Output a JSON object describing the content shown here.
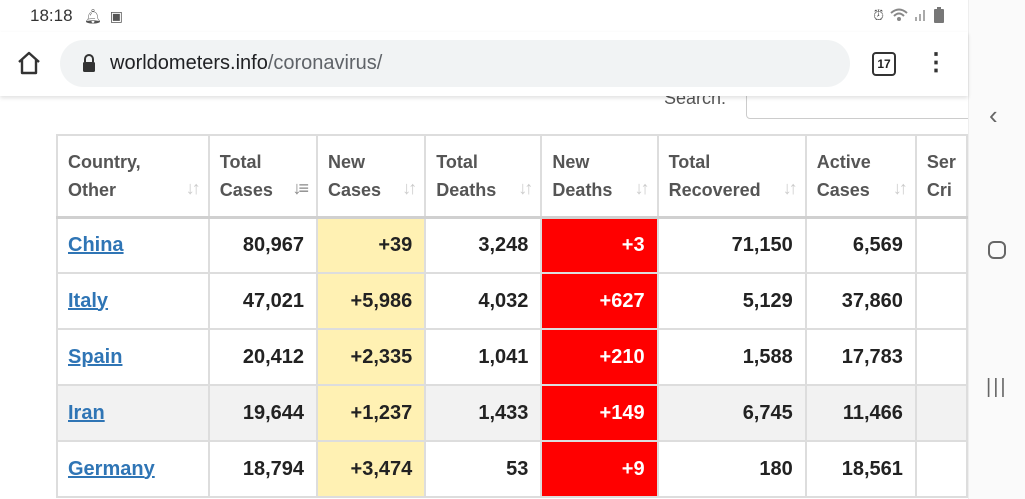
{
  "status_bar": {
    "time": "18:18",
    "left_icons": [
      "bell-icon",
      "notification-icon"
    ],
    "right_icons": [
      "alarm-icon",
      "wifi-icon",
      "signal-icon",
      "battery-icon"
    ]
  },
  "browser": {
    "url_domain": "worldometers.info",
    "url_path": "/coronavirus/",
    "tab_count": "17"
  },
  "search": {
    "label": "Search:",
    "value": ""
  },
  "table": {
    "headers": [
      {
        "line1": "Country,",
        "line2": "Other"
      },
      {
        "line1": "Total",
        "line2": "Cases"
      },
      {
        "line1": "New",
        "line2": "Cases"
      },
      {
        "line1": "Total",
        "line2": "Deaths"
      },
      {
        "line1": "New",
        "line2": "Deaths"
      },
      {
        "line1": "Total",
        "line2": "Recovered"
      },
      {
        "line1": "Active",
        "line2": "Cases"
      },
      {
        "line1": "Ser",
        "line2": "Cri"
      }
    ],
    "rows": [
      {
        "country": "China",
        "total_cases": "80,967",
        "new_cases": "+39",
        "total_deaths": "3,248",
        "new_deaths": "+3",
        "total_recovered": "71,150",
        "active_cases": "6,569"
      },
      {
        "country": "Italy",
        "total_cases": "47,021",
        "new_cases": "+5,986",
        "total_deaths": "4,032",
        "new_deaths": "+627",
        "total_recovered": "5,129",
        "active_cases": "37,860"
      },
      {
        "country": "Spain",
        "total_cases": "20,412",
        "new_cases": "+2,335",
        "total_deaths": "1,041",
        "new_deaths": "+210",
        "total_recovered": "1,588",
        "active_cases": "17,783"
      },
      {
        "country": "Iran",
        "total_cases": "19,644",
        "new_cases": "+1,237",
        "total_deaths": "1,433",
        "new_deaths": "+149",
        "total_recovered": "6,745",
        "active_cases": "11,466"
      },
      {
        "country": "Germany",
        "total_cases": "18,794",
        "new_cases": "+3,474",
        "total_deaths": "53",
        "new_deaths": "+9",
        "total_recovered": "180",
        "active_cases": "18,561"
      }
    ]
  },
  "colors": {
    "new_cases_bg": "#fff1b3",
    "new_deaths_bg": "#ff0000",
    "link": "#2f75b5"
  },
  "nav_bar": {
    "icons": [
      "back-icon",
      "home-icon",
      "recent-apps-icon"
    ]
  }
}
